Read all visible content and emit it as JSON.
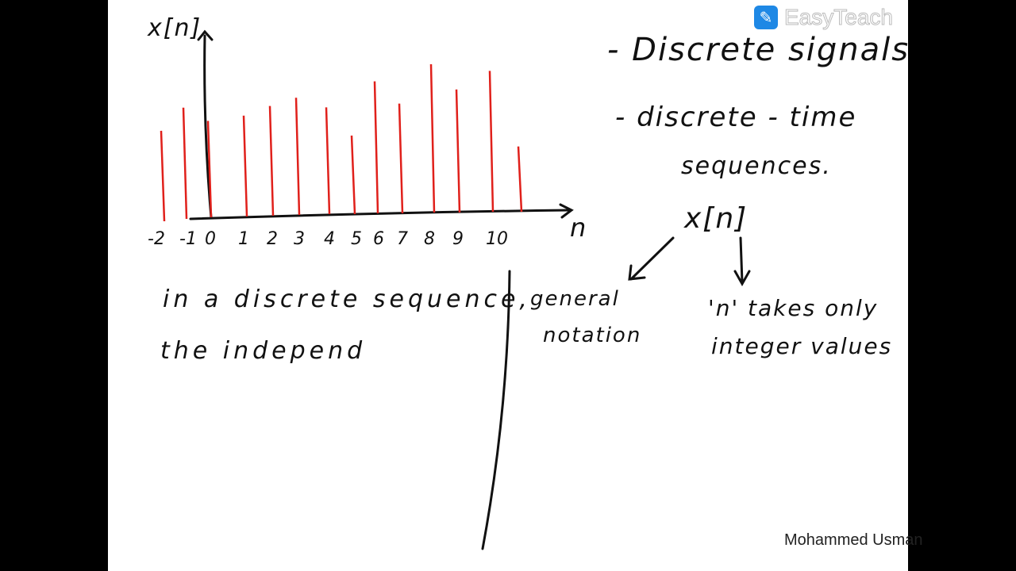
{
  "branding": {
    "logo_text": "EasyTeach",
    "logo_icon": "pen-in-circle-icon",
    "logo_color": "#1e88e5",
    "author": "Mohammed Usman"
  },
  "chart_data": {
    "type": "stem",
    "ylabel": "x[n]",
    "xlabel": "n",
    "tick_labels": [
      "-2",
      "-1",
      "0",
      "1",
      "2",
      "3",
      "4",
      "5",
      "6",
      "7",
      "8",
      "9",
      "10"
    ],
    "stem_color": "#e0201b",
    "stems": [
      {
        "n": -2,
        "value": 0.61
      },
      {
        "n": -1,
        "value": 0.75
      },
      {
        "n": 0,
        "value": 0.65
      },
      {
        "n": 1,
        "value": 0.68
      },
      {
        "n": 2,
        "value": 0.74
      },
      {
        "n": 3,
        "value": 0.79
      },
      {
        "n": 4,
        "value": 0.72
      },
      {
        "n": 5,
        "value": 0.53
      },
      {
        "n": 6,
        "value": 0.89
      },
      {
        "n": 7,
        "value": 0.74
      },
      {
        "n": 8,
        "value": 1.0
      },
      {
        "n": 9,
        "value": 0.83
      },
      {
        "n": 10,
        "value": 0.95
      },
      {
        "n": 11,
        "value": 0.44
      }
    ]
  },
  "notes": {
    "heading1": "- Discrete signals",
    "heading2": "- discrete - time",
    "heading2b": "sequences.",
    "xn": "x[n]",
    "general": "general",
    "notation": "notation",
    "n_takes": "'n' takes only",
    "integer_values": "integer values",
    "line1": "in a discrete sequence,",
    "line2": "the independ"
  }
}
